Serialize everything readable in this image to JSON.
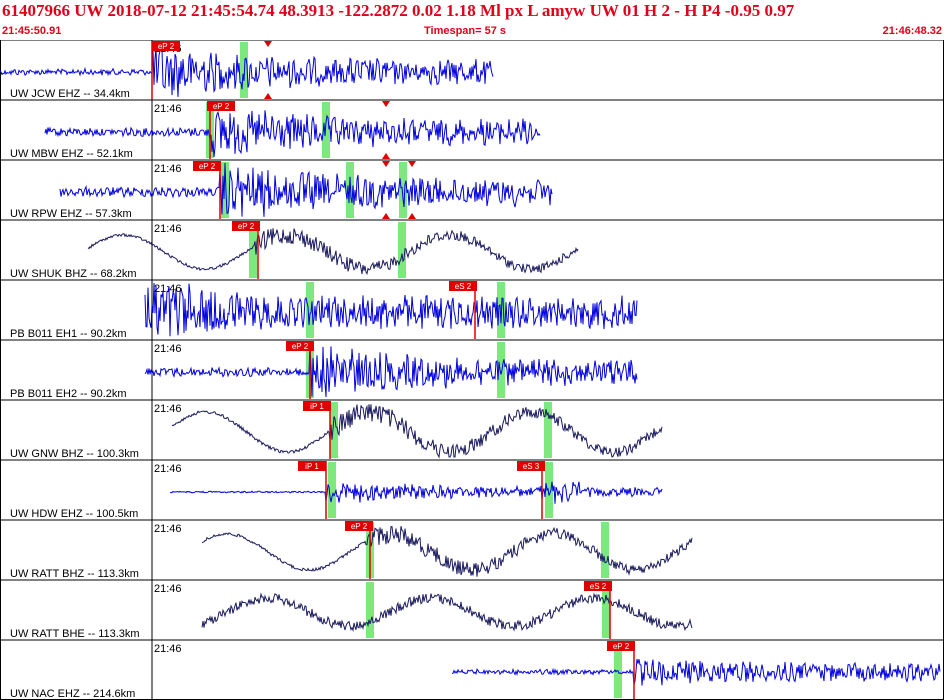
{
  "header": {
    "title": "61407966 UW 2018-07-12 21:45:54.74   48.3913 -122.2872   0.02  1.18 Ml  px  L amyw     UW 01  H   2  -  H P4   -0.95  0.97",
    "start_time": "21:45:50.91",
    "timespan": "Timespan=  57 s",
    "end_time": "21:46:48.32"
  },
  "colors": {
    "header_text": "#e0001a",
    "trace_blue": "#0000dd",
    "trace_dark": "#1a1a5e",
    "pick_label_bg": "#e00000",
    "green_window": "#7de87d",
    "grid": "#000000"
  },
  "panels": [
    {
      "label": "UW JCW EHZ -- 34.4km",
      "time": "21:46",
      "picks": [
        {
          "text": "eP 2",
          "kind": "P"
        }
      ]
    },
    {
      "label": "UW MBW EHZ -- 52.1km",
      "time": "21:46",
      "picks": [
        {
          "text": "eP 2",
          "kind": "P"
        }
      ]
    },
    {
      "label": "UW RPW EHZ -- 57.3km",
      "time": "21:46",
      "picks": [
        {
          "text": "eP 2",
          "kind": "P"
        }
      ]
    },
    {
      "label": "UW SHUK BHZ -- 68.2km",
      "time": "21:46",
      "picks": [
        {
          "text": "eP 2",
          "kind": "P"
        }
      ]
    },
    {
      "label": "PB B011 EH1 -- 90.2km",
      "time": "21:46",
      "picks": [
        {
          "text": "eS 2",
          "kind": "S"
        }
      ]
    },
    {
      "label": "PB B011 EH2 -- 90.2km",
      "time": "21:46",
      "picks": [
        {
          "text": "eP 2",
          "kind": "P"
        }
      ]
    },
    {
      "label": "UW GNW BHZ -- 100.3km",
      "time": "21:46",
      "picks": [
        {
          "text": "iP 1",
          "kind": "P"
        }
      ]
    },
    {
      "label": "UW HDW EHZ -- 100.5km",
      "time": "21:46",
      "picks": [
        {
          "text": "iP 1",
          "kind": "P"
        },
        {
          "text": "eS 3",
          "kind": "S"
        }
      ]
    },
    {
      "label": "UW RATT BHZ -- 113.3km",
      "time": "21:46",
      "picks": [
        {
          "text": "eP 2",
          "kind": "P"
        }
      ]
    },
    {
      "label": "UW RATT BHE -- 113.3km",
      "time": "21:46",
      "picks": [
        {
          "text": "eS 2",
          "kind": "S"
        }
      ]
    },
    {
      "label": "UW NAC EHZ -- 214.6km",
      "time": "21:46",
      "picks": [
        {
          "text": "eP 2",
          "kind": "P"
        }
      ]
    }
  ]
}
